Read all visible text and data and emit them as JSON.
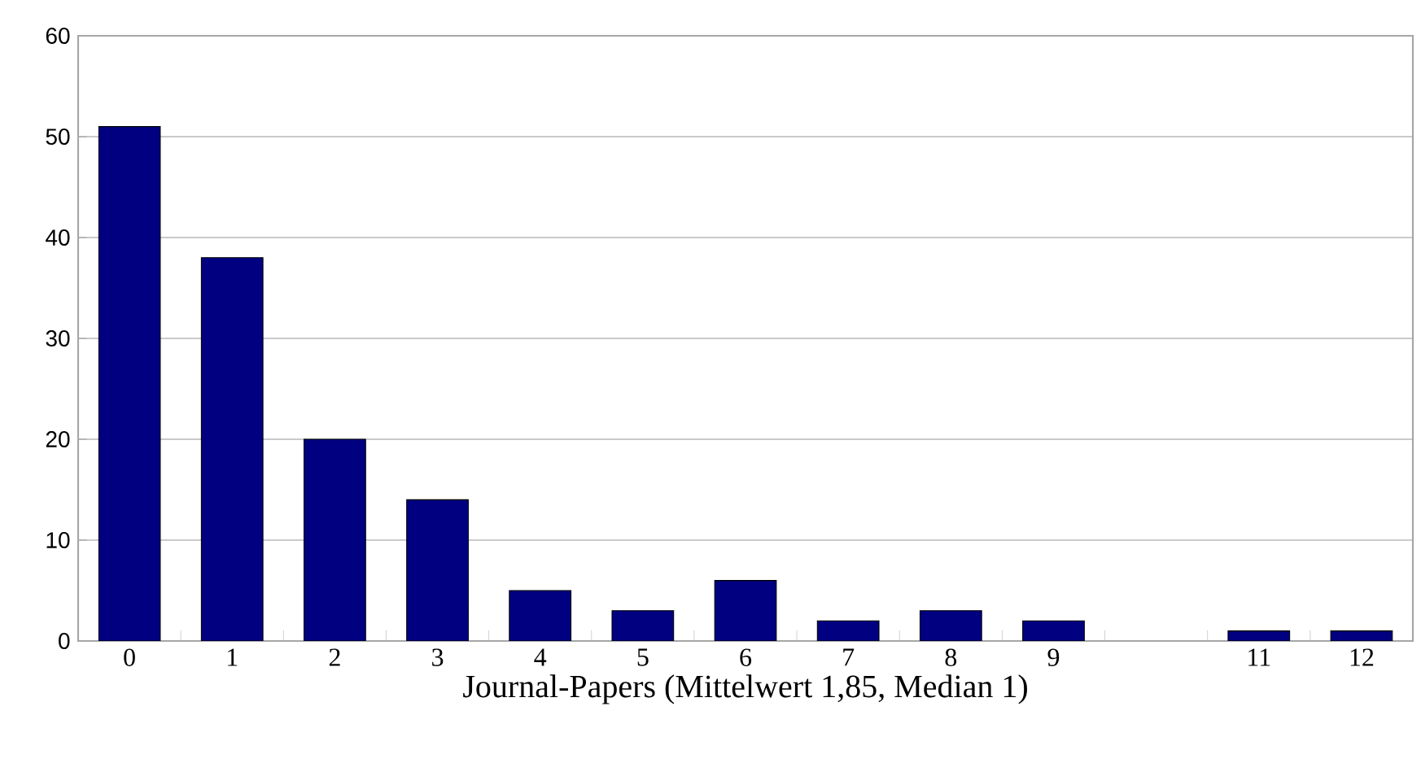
{
  "chart_data": {
    "type": "bar",
    "xlabel": "Journal-Papers (Mittelwert 1,85, Median 1)",
    "categories": [
      "0",
      "1",
      "2",
      "3",
      "4",
      "5",
      "6",
      "7",
      "8",
      "9",
      null,
      "11",
      "12"
    ],
    "values": [
      51,
      38,
      20,
      14,
      5,
      3,
      6,
      2,
      3,
      2,
      null,
      1,
      1
    ],
    "color": "#000080",
    "ylim": [
      0,
      60
    ],
    "yticks": [
      0,
      10,
      20,
      30,
      40,
      50,
      60
    ],
    "grid": "y"
  }
}
